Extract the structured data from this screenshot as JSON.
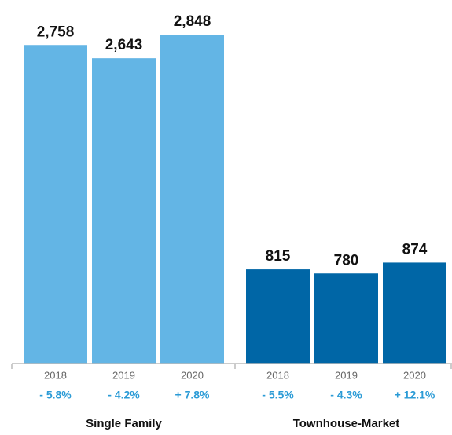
{
  "chart_data": {
    "type": "bar",
    "groups": [
      {
        "name": "Single Family",
        "color": "#63b5e5",
        "categories": [
          "2018",
          "2019",
          "2020"
        ],
        "values": [
          2758,
          2643,
          2848
        ],
        "value_labels": [
          "2,758",
          "2,643",
          "2,848"
        ],
        "change_labels": [
          "- 5.8%",
          "- 4.2%",
          "+ 7.8%"
        ]
      },
      {
        "name": "Townhouse-Market",
        "color": "#0066a6",
        "categories": [
          "2018",
          "2019",
          "2020"
        ],
        "values": [
          815,
          780,
          874
        ],
        "value_labels": [
          "815",
          "780",
          "874"
        ],
        "change_labels": [
          "- 5.5%",
          "- 4.3%",
          "+ 12.1%"
        ]
      }
    ]
  }
}
